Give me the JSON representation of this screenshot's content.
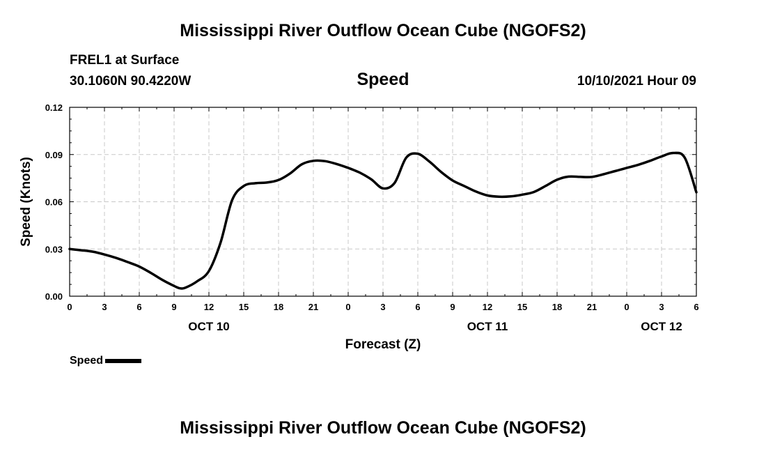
{
  "page": {
    "top_title": "Mississippi River Outflow Ocean Cube (NGOFS2)",
    "bottom_title": "Mississippi River Outflow Ocean Cube (NGOFS2)",
    "station": "FREL1 at Surface",
    "coords": "30.1060N  90.4220W",
    "variable": "Speed",
    "datetime": "10/10/2021 Hour 09"
  },
  "legend": {
    "label": "Speed"
  },
  "chart_data": {
    "type": "line",
    "title": "Speed",
    "xlabel": "Forecast (Z)",
    "ylabel": "Speed (Knots)",
    "xlim": [
      0,
      54
    ],
    "ylim": [
      0,
      0.12
    ],
    "grid": true,
    "x_ticks": [
      0,
      3,
      6,
      9,
      12,
      15,
      18,
      21,
      24,
      27,
      30,
      33,
      36,
      39,
      42,
      45,
      48,
      51,
      54
    ],
    "x_tick_labels": [
      "0",
      "3",
      "6",
      "9",
      "12",
      "15",
      "18",
      "21",
      "0",
      "3",
      "6",
      "9",
      "12",
      "15",
      "18",
      "21",
      "0",
      "3",
      "6"
    ],
    "y_ticks": [
      0,
      0.03,
      0.06,
      0.09,
      0.12
    ],
    "y_tick_labels": [
      "0.00",
      "0.03",
      "0.06",
      "0.09",
      "0.12"
    ],
    "date_labels": [
      {
        "x": 12,
        "label": "OCT 10"
      },
      {
        "x": 36,
        "label": "OCT 11"
      },
      {
        "x": 51,
        "label": "OCT 12"
      }
    ],
    "series": [
      {
        "name": "Speed",
        "color": "#000000",
        "x": [
          0,
          1,
          2,
          3,
          4,
          5,
          6,
          7,
          8,
          9,
          9.5,
          10,
          11,
          12,
          13,
          14,
          15,
          16,
          17,
          18,
          19,
          20,
          21,
          22,
          23,
          24,
          25,
          26,
          27,
          28,
          29,
          30,
          31,
          32,
          33,
          34,
          35,
          36,
          37,
          38,
          39,
          40,
          41,
          42,
          43,
          44,
          45,
          46,
          47,
          48,
          49,
          50,
          51,
          52,
          53,
          54
        ],
        "values": [
          0.03,
          0.0292,
          0.0283,
          0.0265,
          0.0243,
          0.0217,
          0.0188,
          0.0148,
          0.0103,
          0.0065,
          0.005,
          0.0055,
          0.0095,
          0.016,
          0.034,
          0.061,
          0.07,
          0.0718,
          0.0722,
          0.0738,
          0.078,
          0.0838,
          0.086,
          0.0858,
          0.084,
          0.0815,
          0.0785,
          0.0742,
          0.0685,
          0.072,
          0.088,
          0.0905,
          0.0855,
          0.079,
          0.0735,
          0.07,
          0.0665,
          0.064,
          0.0632,
          0.0634,
          0.0645,
          0.0662,
          0.07,
          0.074,
          0.076,
          0.0758,
          0.0758,
          0.0775,
          0.0795,
          0.0815,
          0.0835,
          0.086,
          0.0888,
          0.091,
          0.088,
          0.066
        ]
      }
    ]
  }
}
